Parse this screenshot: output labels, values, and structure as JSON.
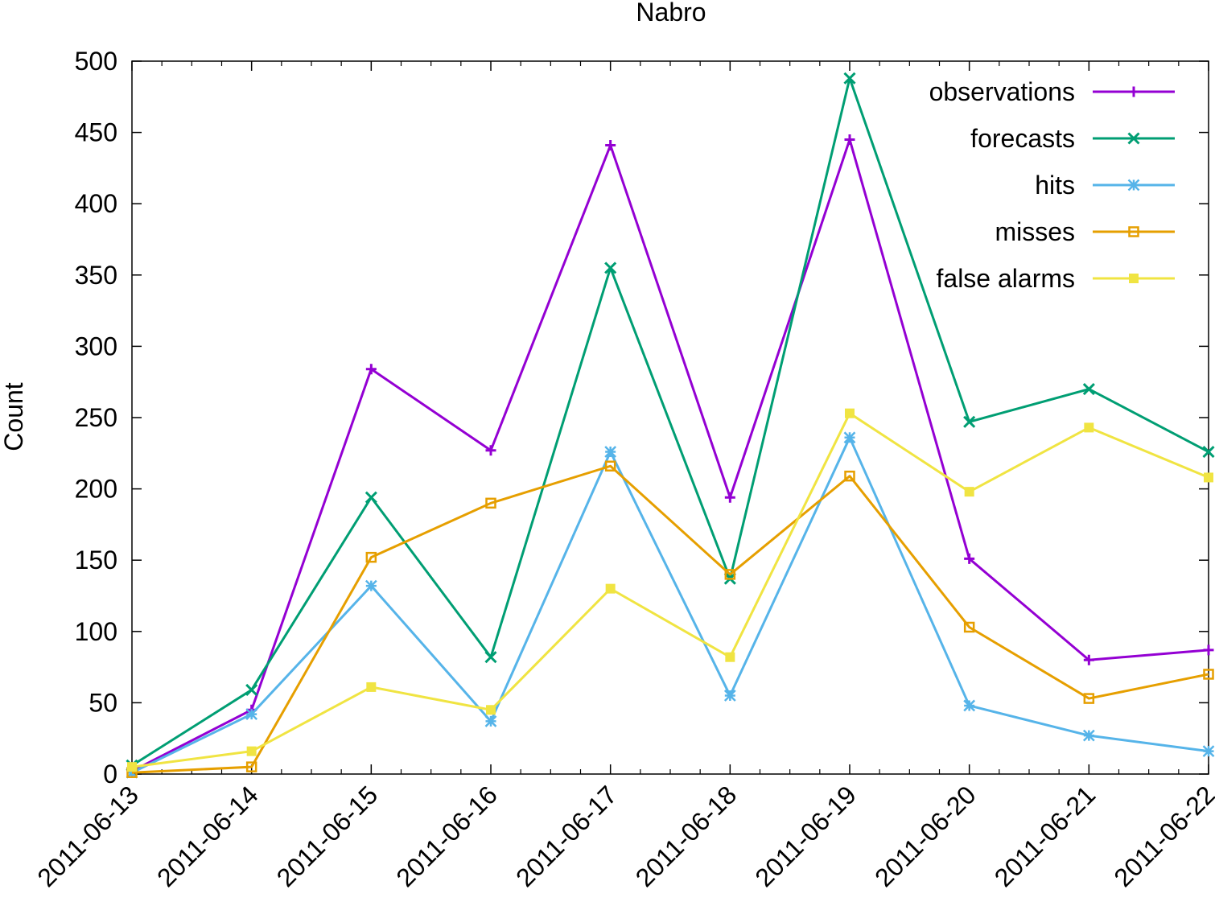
{
  "chart_data": {
    "type": "line",
    "title": "Nabro",
    "xlabel": "",
    "ylabel": "Count",
    "x": [
      "2011-06-13",
      "2011-06-14",
      "2011-06-15",
      "2011-06-16",
      "2011-06-17",
      "2011-06-18",
      "2011-06-19",
      "2011-06-20",
      "2011-06-21",
      "2011-06-22"
    ],
    "ylim": [
      0,
      500
    ],
    "yticks": [
      0,
      50,
      100,
      150,
      200,
      250,
      300,
      350,
      400,
      450,
      500
    ],
    "grid": false,
    "legend_position": "top-right",
    "series": [
      {
        "name": "observations",
        "color": "#9400D3",
        "marker": "plus",
        "values": [
          2,
          45,
          284,
          227,
          441,
          194,
          445,
          151,
          80,
          87
        ]
      },
      {
        "name": "forecasts",
        "color": "#009E73",
        "marker": "cross",
        "values": [
          6,
          59,
          194,
          82,
          355,
          137,
          488,
          247,
          270,
          226
        ]
      },
      {
        "name": "hits",
        "color": "#56B4E9",
        "marker": "asterisk",
        "values": [
          1,
          42,
          132,
          37,
          226,
          55,
          236,
          48,
          27,
          16
        ]
      },
      {
        "name": "misses",
        "color": "#E69F00",
        "marker": "square-open",
        "values": [
          1,
          5,
          152,
          190,
          216,
          140,
          209,
          103,
          53,
          70
        ]
      },
      {
        "name": "false alarms",
        "color": "#F0E442",
        "marker": "square-filled",
        "values": [
          5,
          16,
          61,
          45,
          130,
          82,
          253,
          198,
          243,
          208
        ]
      }
    ]
  }
}
